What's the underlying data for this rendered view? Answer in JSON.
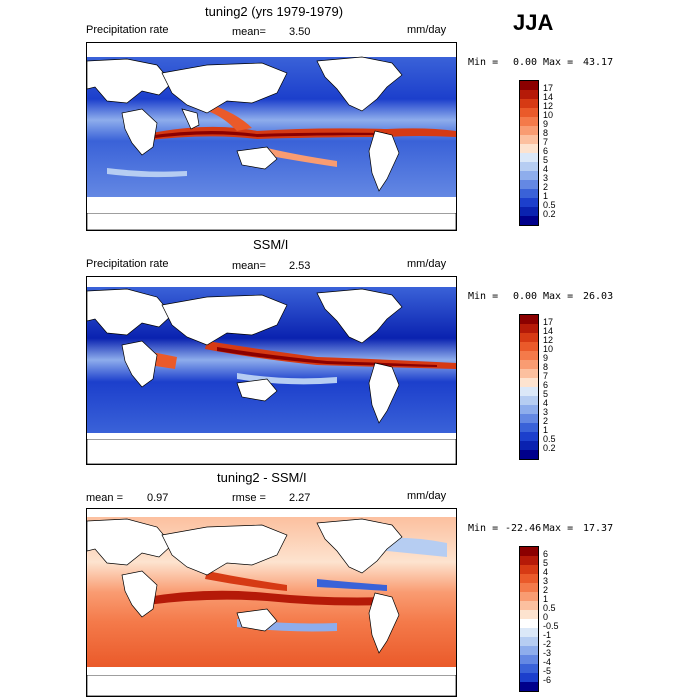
{
  "season": "JJA",
  "panels": [
    {
      "title": "tuning2 (yrs 1979-1979)",
      "left_label": "Precipitation rate",
      "stat_label": "mean=",
      "stat_value": "3.50",
      "stat2_label": "",
      "stat2_value": "",
      "units": "mm/day",
      "min_label": "Min =",
      "min_value": "0.00",
      "max_label": "Max =",
      "max_value": "43.17",
      "colorbar": {
        "labels": [
          "17",
          "14",
          "12",
          "10",
          "9",
          "8",
          "7",
          "6",
          "5",
          "4",
          "3",
          "2",
          "1",
          "0.5",
          "0.2"
        ],
        "colors": [
          "#8b0000",
          "#b51a08",
          "#d63a14",
          "#ea5a2a",
          "#f47a4a",
          "#f99c72",
          "#fcc09f",
          "#fde3cf",
          "#dbe8f8",
          "#b6cdf2",
          "#8eadec",
          "#6488e3",
          "#3a62d8",
          "#1c3fcc",
          "#0a22b0",
          "#00008b"
        ]
      }
    },
    {
      "title": "SSM/I",
      "left_label": "Precipitation rate",
      "stat_label": "mean=",
      "stat_value": "2.53",
      "stat2_label": "",
      "stat2_value": "",
      "units": "mm/day",
      "min_label": "Min =",
      "min_value": "0.00",
      "max_label": "Max =",
      "max_value": "26.03",
      "colorbar": {
        "labels": [
          "17",
          "14",
          "12",
          "10",
          "9",
          "8",
          "7",
          "6",
          "5",
          "4",
          "3",
          "2",
          "1",
          "0.5",
          "0.2"
        ],
        "colors": [
          "#8b0000",
          "#b51a08",
          "#d63a14",
          "#ea5a2a",
          "#f47a4a",
          "#f99c72",
          "#fcc09f",
          "#fde3cf",
          "#dbe8f8",
          "#b6cdf2",
          "#8eadec",
          "#6488e3",
          "#3a62d8",
          "#1c3fcc",
          "#0a22b0",
          "#00008b"
        ]
      }
    },
    {
      "title": "tuning2 - SSM/I",
      "left_label": "",
      "stat_label": "mean =",
      "stat_value": "0.97",
      "stat2_label": "rmse =",
      "stat2_value": "2.27",
      "units": "mm/day",
      "min_label": "Min =",
      "min_value": "-22.46",
      "max_label": "Max =",
      "max_value": "17.37",
      "colorbar": {
        "labels": [
          "6",
          "5",
          "4",
          "3",
          "2",
          "1",
          "0.5",
          "0",
          "-0.5",
          "-1",
          "-2",
          "-3",
          "-4",
          "-5",
          "-6"
        ],
        "colors": [
          "#8b0000",
          "#b51a08",
          "#d63a14",
          "#ea5a2a",
          "#f47a4a",
          "#f99c72",
          "#fcc09f",
          "#fde3cf",
          "#ffffff",
          "#dbe8f8",
          "#b6cdf2",
          "#8eadec",
          "#6488e3",
          "#3a62d8",
          "#1c3fcc",
          "#00008b"
        ]
      }
    }
  ]
}
